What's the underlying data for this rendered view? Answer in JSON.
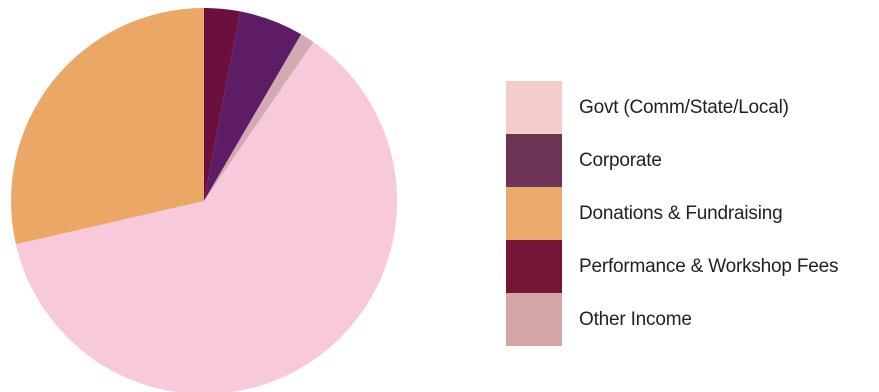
{
  "chart_data": {
    "type": "pie",
    "title": "",
    "start_angle_deg": 0,
    "direction": "clockwise",
    "slices": [
      {
        "label": "Performance & Workshop Fees",
        "value": 3.0,
        "color": "#6b0f3e"
      },
      {
        "label": "Corporate",
        "value": 5.4,
        "color": "#5e1c66"
      },
      {
        "label": "Other Income",
        "value": 1.2,
        "color": "#d3a9b2"
      },
      {
        "label": "Govt (Comm/State/Local)",
        "value": 61.8,
        "color": "#f8c9da"
      },
      {
        "label": "Donations & Fundraising",
        "value": 28.6,
        "color": "#eba765"
      }
    ],
    "legend": {
      "position": "right",
      "items": [
        {
          "label": "Govt (Comm/State/Local)",
          "color": "#f4ccca"
        },
        {
          "label": "Corporate",
          "color": "#6c3556"
        },
        {
          "label": "Donations & Fundraising",
          "color": "#eba96c"
        },
        {
          "label": "Performance & Workshop Fees",
          "color": "#771536"
        },
        {
          "label": "Other Income",
          "color": "#d3a5a5"
        }
      ]
    }
  }
}
